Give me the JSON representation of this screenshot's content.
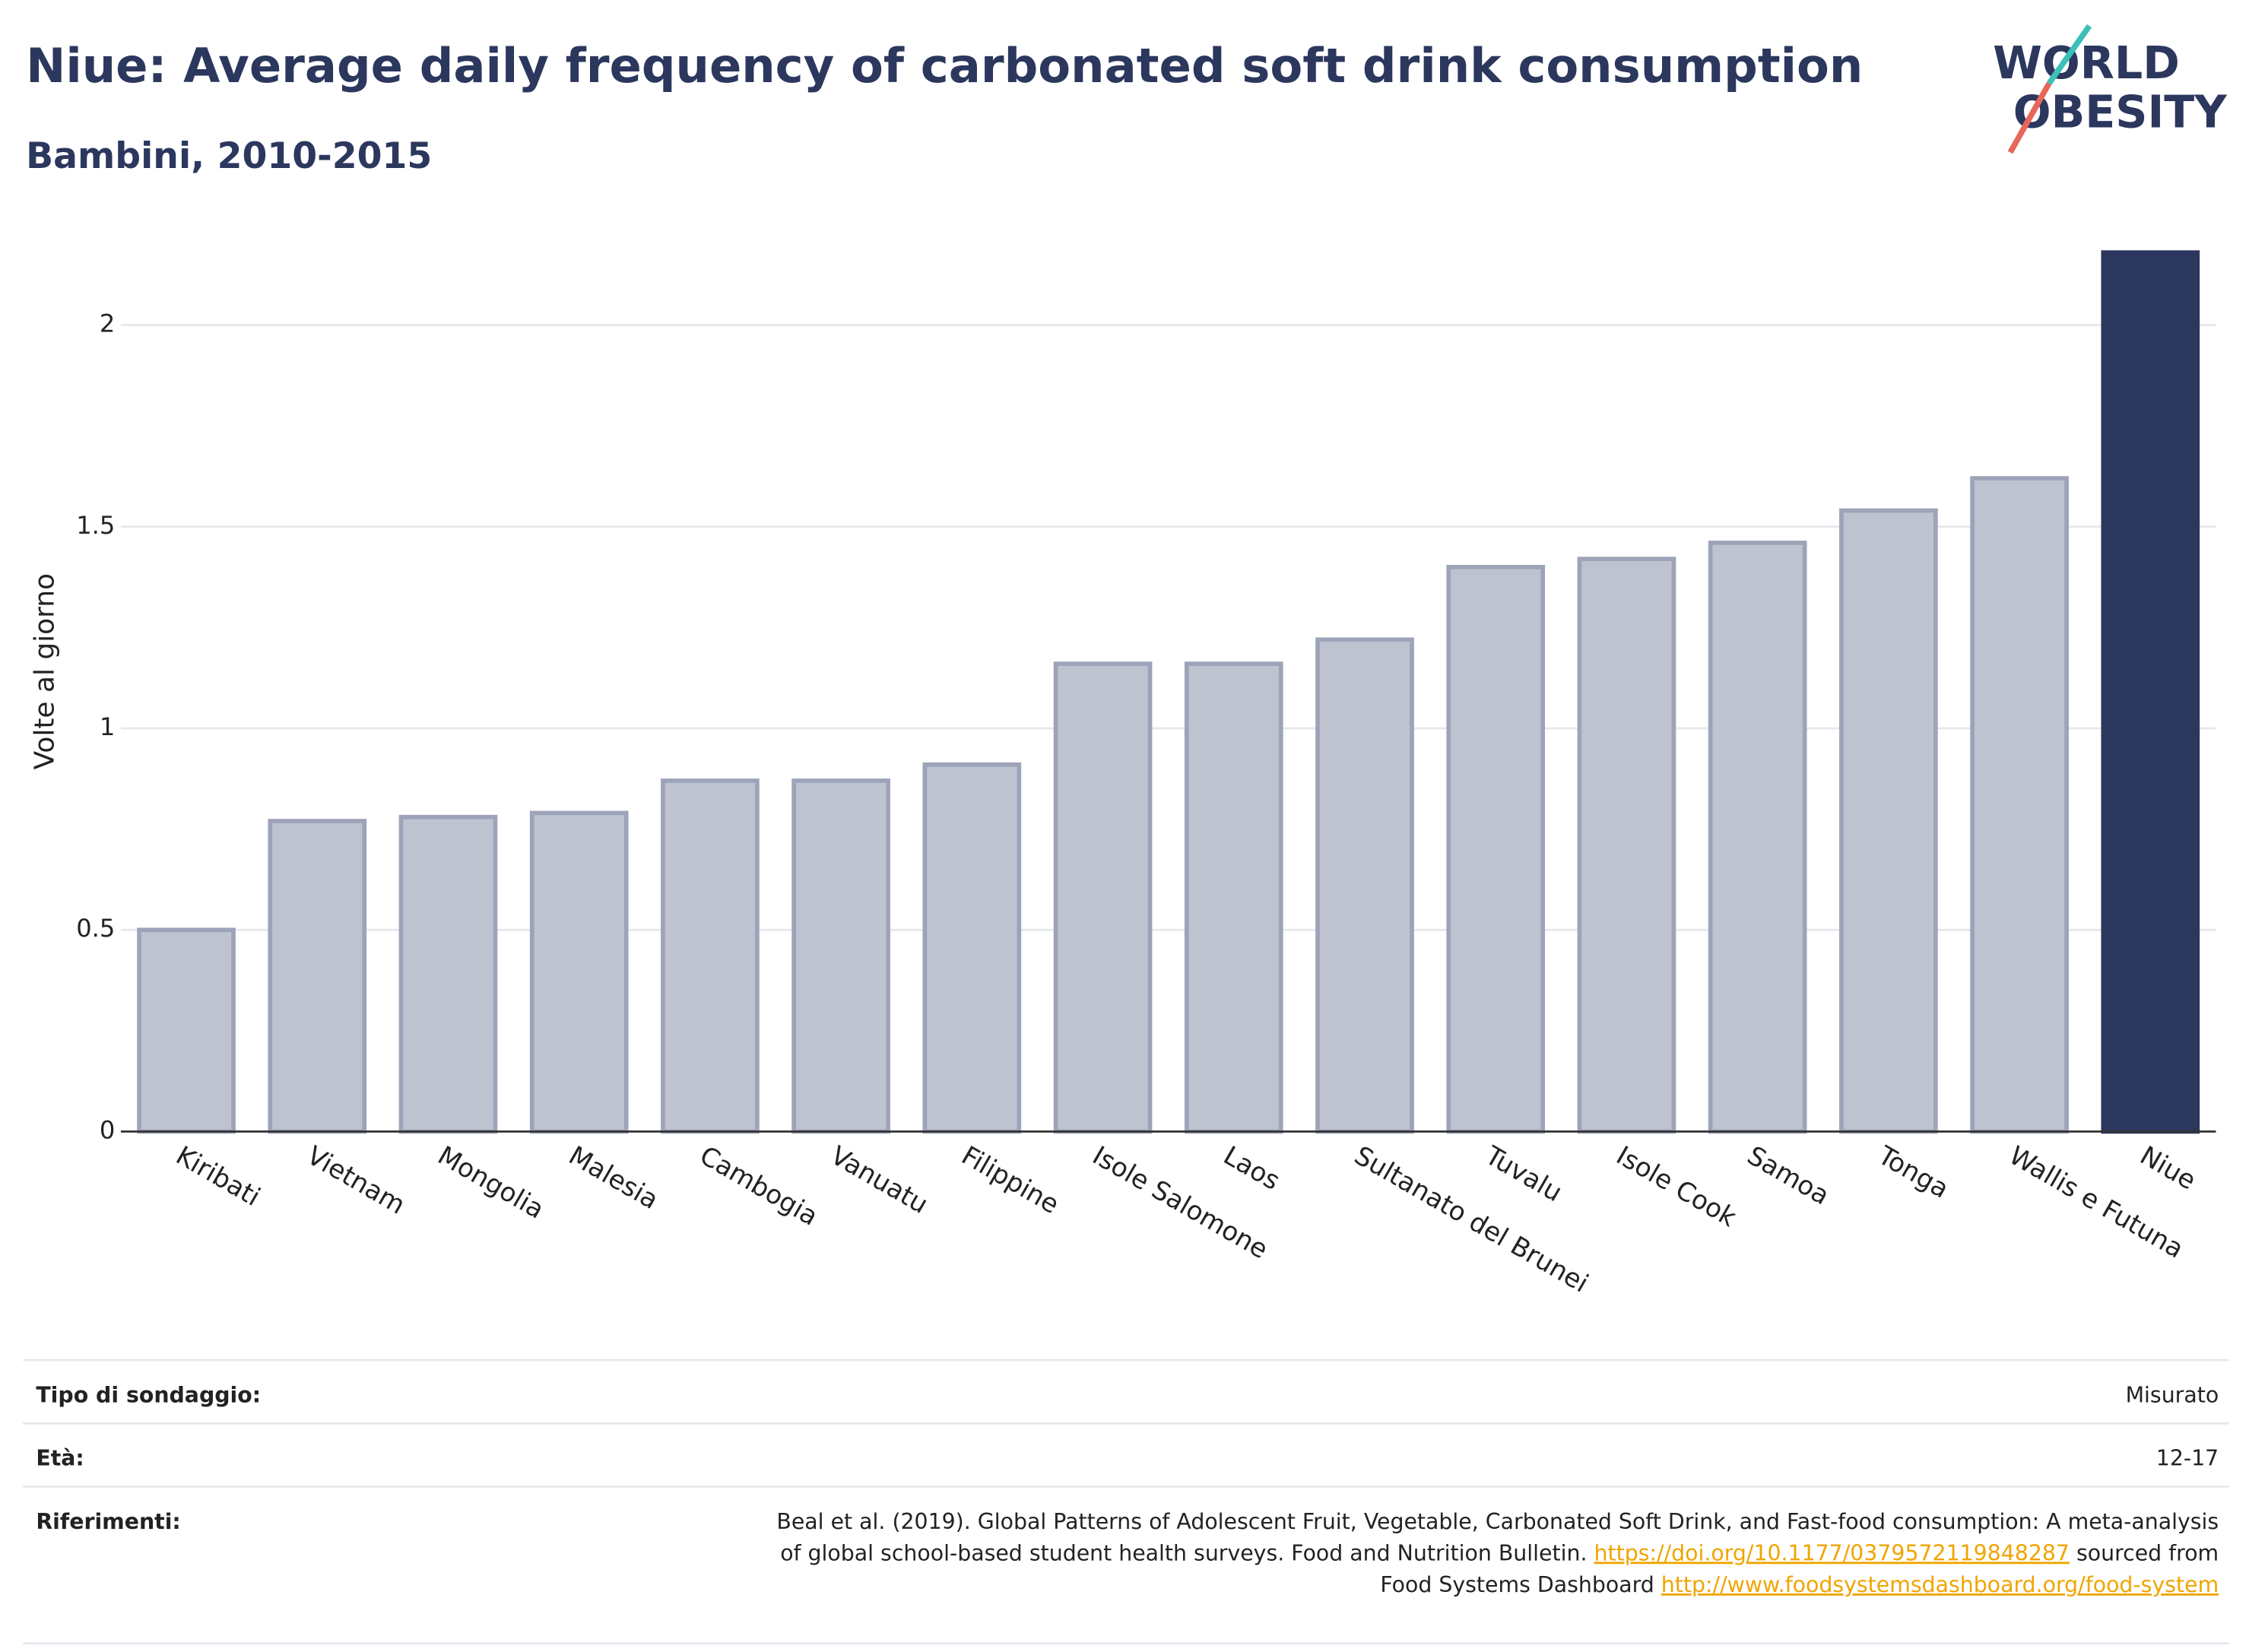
{
  "chart_data": {
    "type": "bar",
    "title": "Niue: Average daily frequency of carbonated soft drink consumption",
    "subtitle": "Bambini, 2010-2015",
    "y_label": "Volte al giorno",
    "categories": [
      "Kiribati",
      "Vietnam",
      "Mongolia",
      "Malesia",
      "Cambogia",
      "Vanuatu",
      "Filippine",
      "Isole Salomone",
      "Laos",
      "Sultanato del Brunei",
      "Tuvalu",
      "Isole Cook",
      "Samoa",
      "Tonga",
      "Wallis e Futuna",
      "Niue"
    ],
    "values": [
      0.5,
      0.77,
      0.78,
      0.79,
      0.87,
      0.87,
      0.91,
      1.16,
      1.16,
      1.22,
      1.4,
      1.42,
      1.46,
      1.54,
      1.62,
      2.18
    ],
    "colors": [
      "#bfc3d0",
      "#bfc3d0",
      "#bfc3d0",
      "#bfc3d0",
      "#bfc3d0",
      "#bfc3d0",
      "#bfc3d0",
      "#bfc3d0",
      "#bfc3d0",
      "#bfc3d0",
      "#bfc3d0",
      "#bfc3d0",
      "#bfc3d0",
      "#bfc3d0",
      "#bfc3d0",
      "#2c375e"
    ],
    "ylim": [
      0,
      2.2
    ],
    "yticks": [
      0,
      0.5,
      1,
      1.5,
      2
    ],
    "grid": true
  },
  "logo": {
    "line1": "WORLD",
    "line2": "OBESITY"
  },
  "footer": {
    "rows": [
      {
        "label": "Tipo di sondaggio:",
        "lines": [
          [
            {
              "text": "Misurato"
            }
          ]
        ]
      },
      {
        "label": "Età:",
        "lines": [
          [
            {
              "text": "12-17"
            }
          ]
        ]
      },
      {
        "label": "Riferimenti:",
        "lines": [
          [
            {
              "text": "Beal et al. (2019). Global Patterns of Adolescent Fruit, Vegetable, Carbonated Soft Drink, and Fast-food consumption: A meta-analysis"
            }
          ],
          [
            {
              "text": "of global school-based student health surveys. Food and Nutrition Bulletin. "
            },
            {
              "text": "https://doi.org/10.1177/0379572119848287",
              "link": true
            },
            {
              "text": " sourced from"
            }
          ],
          [
            {
              "text": "Food Systems Dashboard "
            },
            {
              "text": "http://www.foodsystemsdashboard.org/food-system",
              "link": true
            }
          ]
        ]
      }
    ]
  }
}
